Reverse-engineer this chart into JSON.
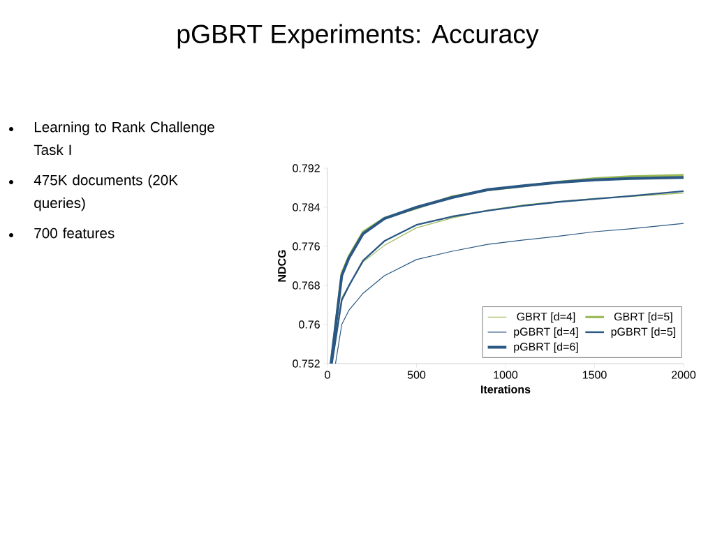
{
  "chart_data": {
    "type": "line",
    "title": "pGBRT Experiments:  Accuracy",
    "annotations": [
      "Learning to Rank Challenge Task I",
      "475K documents (20K queries)",
      "700 features"
    ],
    "xlabel": "Iterations",
    "ylabel": "NDCG",
    "xlim": [
      0,
      2000
    ],
    "xticks": [
      0,
      500,
      1000,
      1500,
      2000
    ],
    "ylim": [
      0.752,
      0.792
    ],
    "yticks": [
      0.752,
      0.76,
      0.768,
      0.776,
      0.784,
      0.792
    ],
    "grid": false,
    "legend": "bottom right",
    "marker": "none",
    "line_style": "solid",
    "series": [
      {
        "name": "GBRT [d=4]",
        "color": "#9bbb59",
        "x": [
          25,
          80,
          120,
          200,
          320,
          500,
          700,
          900,
          1100,
          1300,
          1500,
          1700,
          2000
        ],
        "values": [
          0.752,
          0.7655,
          0.768,
          0.7728,
          0.7762,
          0.7798,
          0.7818,
          0.7834,
          0.7845,
          0.7852,
          0.7858,
          0.7862,
          0.7869
        ]
      },
      {
        "name": "GBRT [d=5]",
        "color": "#9bbb59",
        "x": [
          20,
          80,
          120,
          200,
          320,
          500,
          700,
          900,
          1100,
          1300,
          1500,
          1700,
          2000
        ],
        "values": [
          0.752,
          0.7705,
          0.774,
          0.779,
          0.7818,
          0.7838,
          0.7862,
          0.7875,
          0.7883,
          0.7892,
          0.7899,
          0.7903,
          0.7906
        ]
      },
      {
        "name": "pGBRT [d=4]",
        "color": "#2a5783",
        "x": [
          45,
          80,
          120,
          200,
          320,
          500,
          700,
          900,
          1100,
          1300,
          1500,
          1700,
          2000
        ],
        "values": [
          0.752,
          0.76,
          0.7629,
          0.7664,
          0.77,
          0.7733,
          0.775,
          0.7764,
          0.7773,
          0.7781,
          0.779,
          0.7796,
          0.7807
        ]
      },
      {
        "name": "pGBRT [d=5]",
        "color": "#2a5783",
        "x": [
          25,
          80,
          120,
          200,
          320,
          500,
          700,
          900,
          1100,
          1300,
          1500,
          1700,
          2000
        ],
        "values": [
          0.752,
          0.765,
          0.7679,
          0.7731,
          0.7771,
          0.7804,
          0.7821,
          0.7833,
          0.7843,
          0.7851,
          0.7857,
          0.7863,
          0.7873
        ]
      },
      {
        "name": "pGBRT [d=6]",
        "color": "#2a5783",
        "x": [
          20,
          80,
          120,
          200,
          320,
          500,
          700,
          900,
          1100,
          1300,
          1500,
          1700,
          2000
        ],
        "values": [
          0.752,
          0.77,
          0.7736,
          0.7786,
          0.7817,
          0.784,
          0.786,
          0.7876,
          0.7884,
          0.7891,
          0.7896,
          0.7899,
          0.7901
        ]
      }
    ]
  }
}
